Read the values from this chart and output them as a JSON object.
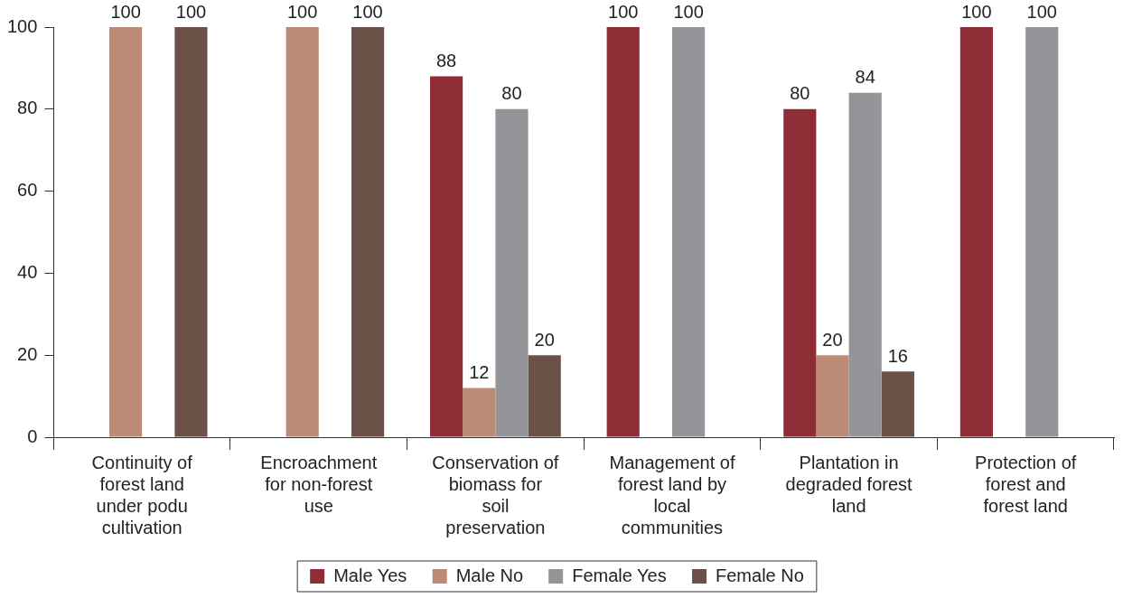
{
  "chart_data": {
    "type": "bar",
    "categories": [
      "Continuity of forest land under podu cultivation",
      "Encroachment for non-forest use",
      "Conservation of biomass for soil preservation",
      "Management of forest land by local communities",
      "Plantation in degraded forest land",
      "Protection of forest and forest land"
    ],
    "series": [
      {
        "name": "Male Yes",
        "color": "#8e2d36",
        "values": [
          null,
          null,
          88,
          100,
          80,
          100
        ]
      },
      {
        "name": "Male No",
        "color": "#bc8b78",
        "values": [
          100,
          100,
          12,
          null,
          20,
          null
        ]
      },
      {
        "name": "Female Yes",
        "color": "#939598",
        "values": [
          null,
          null,
          80,
          100,
          84,
          100
        ]
      },
      {
        "name": "Female No",
        "color": "#6b5146",
        "values": [
          100,
          100,
          20,
          null,
          16,
          null
        ]
      }
    ],
    "ylim": [
      0,
      100
    ],
    "yticks": [
      0,
      20,
      40,
      60,
      80,
      100
    ],
    "grid": false,
    "legend": "bottom",
    "data_labels": true
  }
}
